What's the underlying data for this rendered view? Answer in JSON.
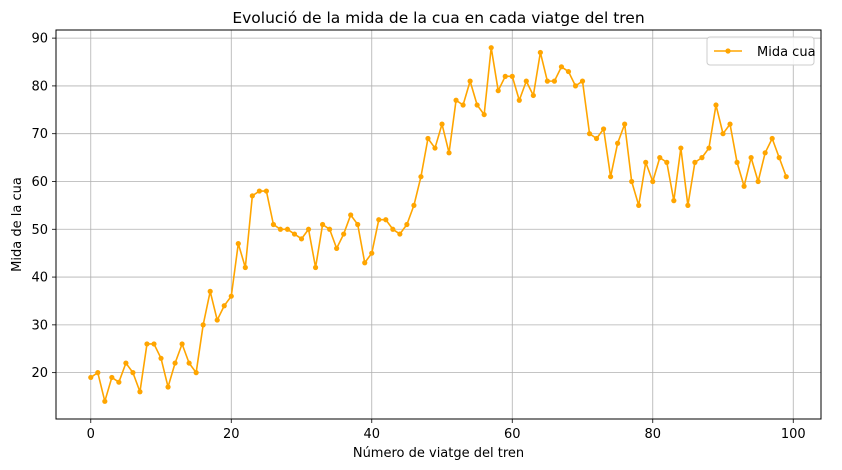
{
  "chart_data": {
    "type": "line",
    "title": "Evolució de la mida de la cua en cada viatge del tren",
    "xlabel": "Número de viatge del tren",
    "ylabel": "Mida de la cua",
    "xlim": [
      -4.95,
      103.95
    ],
    "ylim": [
      10.3,
      91.7
    ],
    "xticks": [
      0,
      20,
      40,
      60,
      80,
      100
    ],
    "yticks": [
      20,
      30,
      40,
      50,
      60,
      70,
      80,
      90
    ],
    "grid": true,
    "legend_position": "top-right",
    "series": [
      {
        "name": "Mida cua",
        "color": "#ffa500",
        "marker": "circle",
        "x": [
          0,
          1,
          2,
          3,
          4,
          5,
          6,
          7,
          8,
          9,
          10,
          11,
          12,
          13,
          14,
          15,
          16,
          17,
          18,
          19,
          20,
          21,
          22,
          23,
          24,
          25,
          26,
          27,
          28,
          29,
          30,
          31,
          32,
          33,
          34,
          35,
          36,
          37,
          38,
          39,
          40,
          41,
          42,
          43,
          44,
          45,
          46,
          47,
          48,
          49,
          50,
          51,
          52,
          53,
          54,
          55,
          56,
          57,
          58,
          59,
          60,
          61,
          62,
          63,
          64,
          65,
          66,
          67,
          68,
          69,
          70,
          71,
          72,
          73,
          74,
          75,
          76,
          77,
          78,
          79,
          80,
          81,
          82,
          83,
          84,
          85,
          86,
          87,
          88,
          89,
          90,
          91,
          92,
          93,
          94,
          95,
          96,
          97,
          98,
          99
        ],
        "values": [
          19,
          20,
          14,
          19,
          18,
          22,
          20,
          16,
          26,
          26,
          23,
          17,
          22,
          26,
          22,
          20,
          30,
          37,
          31,
          34,
          36,
          47,
          42,
          57,
          58,
          58,
          51,
          50,
          50,
          49,
          48,
          50,
          42,
          51,
          50,
          46,
          49,
          53,
          51,
          43,
          45,
          52,
          52,
          50,
          49,
          51,
          55,
          61,
          69,
          67,
          72,
          66,
          77,
          76,
          81,
          76,
          74,
          88,
          79,
          82,
          82,
          77,
          81,
          78,
          87,
          81,
          81,
          84,
          83,
          80,
          81,
          70,
          69,
          71,
          61,
          68,
          72,
          60,
          55,
          64,
          60,
          65,
          64,
          56,
          67,
          55,
          64,
          65,
          67,
          76,
          70,
          72,
          64,
          59,
          65,
          60,
          66,
          69,
          65,
          61
        ]
      }
    ]
  }
}
